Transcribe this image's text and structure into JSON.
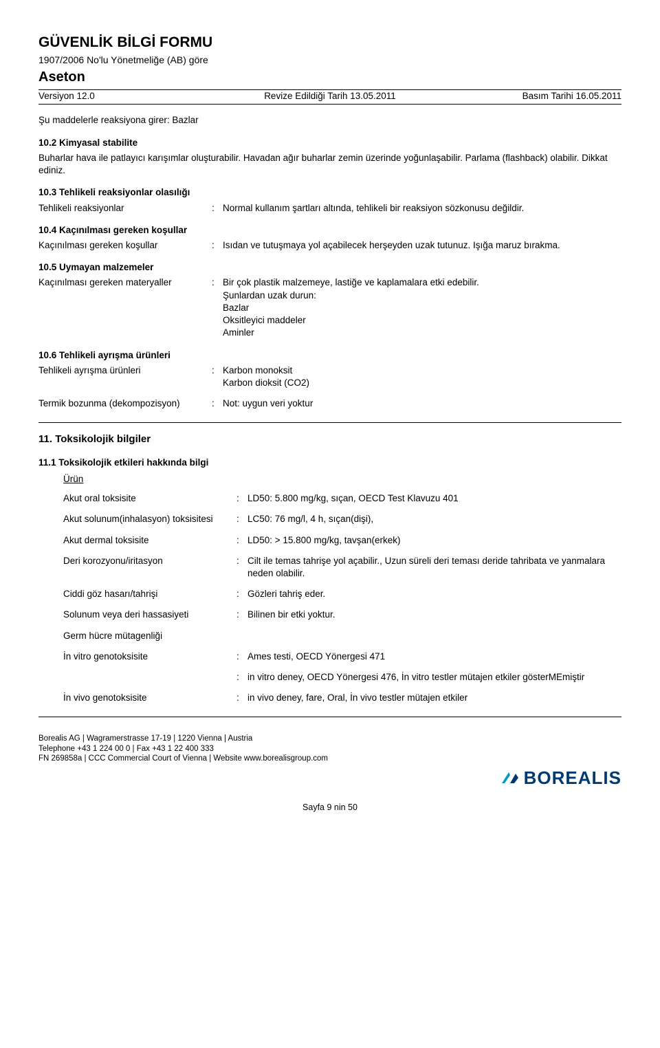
{
  "header": {
    "title": "GÜVENLİK BİLGİ FORMU",
    "regulation": "1907/2006 No'lu Yönetmeliğe (AB) göre",
    "substance": "Aseton",
    "version": "Versiyon 12.0",
    "revised": "Revize Edildiği Tarih 13.05.2011",
    "printed": "Basım Tarihi 16.05.2011"
  },
  "s_intro": {
    "p1": "Şu maddelerle reaksiyona girer: Bazlar"
  },
  "s10_2": {
    "heading": "10.2 Kimyasal stabilite",
    "p1": "Buharlar hava ile patlayıcı karışımlar oluşturabilir. Havadan ağır buharlar zemin üzerinde yoğunlaşabilir. Parlama (flashback) olabilir. Dikkat ediniz."
  },
  "s10_3": {
    "heading": "10.3 Tehlikeli reaksiyonlar olasılığı",
    "row1_label": "Tehlikeli reaksiyonlar",
    "row1_value": "Normal kullanım şartları altında, tehlikeli bir reaksiyon sözkonusu değildir."
  },
  "s10_4": {
    "heading": "10.4 Kaçınılması gereken koşullar",
    "row1_label": "Kaçınılması gereken koşullar",
    "row1_value": "Isıdan ve tutuşmaya yol açabilecek herşeyden uzak tutunuz. Işığa maruz bırakma."
  },
  "s10_5": {
    "heading": "10.5 Uymayan malzemeler",
    "row1_label": "Kaçınılması gereken materyaller",
    "row1_value": "Bir çok plastik malzemeye, lastiğe ve kaplamalara etki edebilir.\nŞunlardan uzak durun:\nBazlar\nOksitleyici maddeler\nAminler"
  },
  "s10_6": {
    "heading": "10.6 Tehlikeli ayrışma ürünleri",
    "row1_label": "Tehlikeli ayrışma ürünleri",
    "row1_value": "Karbon monoksit\nKarbon dioksit (CO2)",
    "row2_label": "Termik bozunma (dekompozisyon)",
    "row2_value": "Not: uygun veri yoktur"
  },
  "s11": {
    "heading": "11. Toksikolojik bilgiler",
    "sub": "11.1 Toksikolojik etkileri hakkında bilgi",
    "product": "Ürün",
    "rows": [
      {
        "label": "Akut oral toksisite",
        "value": "LD50: 5.800 mg/kg, sıçan, OECD Test Klavuzu 401"
      },
      {
        "label": "Akut solunum(inhalasyon) toksisitesi",
        "value": "LC50: 76 mg/l, 4 h, sıçan(dişi),"
      },
      {
        "label": "Akut dermal toksisite",
        "value": "LD50: > 15.800 mg/kg, tavşan(erkek)"
      },
      {
        "label": "Deri korozyonu/iritasyon",
        "value": "Cilt ile temas tahrişe yol açabilir., Uzun süreli deri teması deride tahribata ve yanmalara neden olabilir."
      },
      {
        "label": "Ciddi göz hasarı/tahrişi",
        "value": "Gözleri tahriş eder."
      },
      {
        "label": "Solunum veya deri hassasiyeti",
        "value": "Bilinen bir etki yoktur."
      },
      {
        "label": "Germ hücre mütagenliği",
        "value": ""
      },
      {
        "label": "İn vitro genotoksisite",
        "value": "Ames testi, OECD Yönergesi 471"
      },
      {
        "label": "",
        "value": "in vitro deney, OECD Yönergesi 476, İn vitro testler mütajen etkiler gösterMEmiştir"
      },
      {
        "label": "İn vivo genotoksisite",
        "value": "in vivo deney, fare, Oral, İn vivo testler mütajen etkiler"
      }
    ]
  },
  "footer": {
    "line1": "Borealis AG | Wagramerstrasse 17-19 | 1220 Vienna | Austria",
    "line2": "Telephone +43 1 224 00 0 | Fax +43 1 22 400 333",
    "line3": "FN 269858a | CCC Commercial Court of Vienna | Website www.borealisgroup.com",
    "logo_text": "BOREALIS",
    "page": "Sayfa 9 nin 50"
  }
}
